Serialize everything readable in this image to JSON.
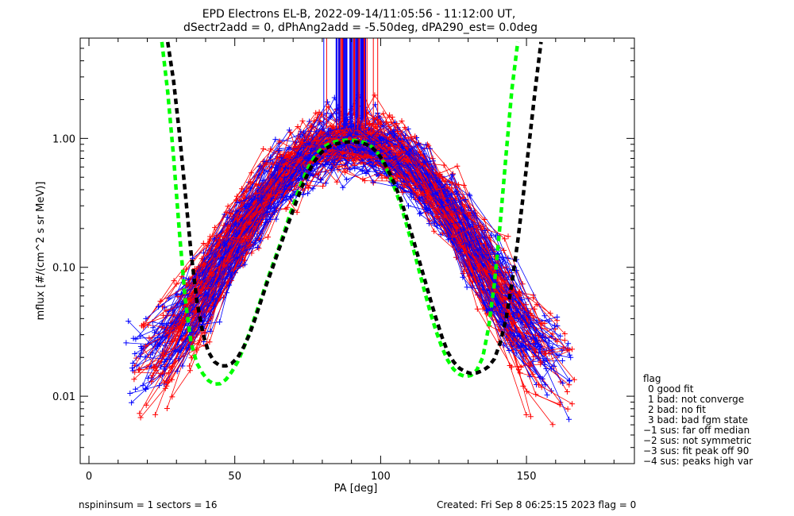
{
  "chart_data": {
    "type": "line",
    "title_line1": "EPD Electrons EL-B, 2022-09-14/11:05:56 - 11:12:00 UT,",
    "title_line2": "dSectr2add = 0, dPhAng2add = -5.50deg, dPA290_est=   0.0deg",
    "xlabel": "PA [deg]",
    "ylabel": "mflux [#/(cm^2 s sr MeV)]",
    "xlim": [
      -3,
      187
    ],
    "ylim": [
      0.003,
      6.0
    ],
    "yscale": "log",
    "x_ticks": [
      {
        "v": 0,
        "label": "0"
      },
      {
        "v": 50,
        "label": "50"
      },
      {
        "v": 100,
        "label": "100"
      },
      {
        "v": 150,
        "label": "150"
      }
    ],
    "y_ticks": [
      {
        "v": 0.01,
        "label": "0.01"
      },
      {
        "v": 0.1,
        "label": "0.10"
      },
      {
        "v": 1.0,
        "label": "1.00"
      }
    ],
    "colors": {
      "red": "#ff0000",
      "blue": "#0000ff",
      "green": "#00ff00",
      "black": "#000000"
    },
    "series": [
      {
        "color": "green",
        "style": "dashed",
        "x": [
          25,
          27,
          29,
          31,
          33,
          35,
          37,
          39,
          41,
          43,
          45,
          47,
          49,
          51,
          53,
          55,
          57,
          59,
          61,
          63,
          65,
          67,
          69,
          71,
          73,
          75,
          77,
          79,
          81,
          83,
          85,
          87,
          89,
          91,
          93,
          95,
          97,
          99,
          101,
          103,
          105,
          107,
          109,
          111,
          113,
          115,
          117,
          119,
          121,
          123,
          125,
          127,
          129,
          131,
          133,
          135,
          137,
          139,
          141,
          143,
          145,
          147
        ],
        "y": [
          5.6,
          2.3,
          0.72,
          0.19,
          0.056,
          0.026,
          0.018,
          0.015,
          0.0132,
          0.0124,
          0.0125,
          0.0135,
          0.0155,
          0.0185,
          0.0235,
          0.031,
          0.042,
          0.057,
          0.078,
          0.105,
          0.14,
          0.19,
          0.26,
          0.35,
          0.46,
          0.58,
          0.7,
          0.8,
          0.87,
          0.92,
          0.95,
          0.965,
          0.97,
          0.965,
          0.95,
          0.92,
          0.86,
          0.77,
          0.65,
          0.52,
          0.4,
          0.3,
          0.21,
          0.145,
          0.098,
          0.066,
          0.045,
          0.032,
          0.024,
          0.019,
          0.0162,
          0.0148,
          0.0142,
          0.0145,
          0.016,
          0.02,
          0.034,
          0.075,
          0.22,
          0.75,
          2.4,
          5.6
        ]
      },
      {
        "color": "black",
        "style": "dashed",
        "x": [
          27,
          29,
          31,
          33,
          35,
          37,
          39,
          41,
          43,
          45,
          47,
          49,
          51,
          53,
          55,
          57,
          59,
          61,
          63,
          65,
          67,
          69,
          71,
          73,
          75,
          77,
          79,
          81,
          83,
          85,
          87,
          89,
          91,
          93,
          95,
          97,
          99,
          101,
          103,
          105,
          107,
          109,
          111,
          113,
          115,
          117,
          119,
          121,
          123,
          125,
          127,
          129,
          131,
          133,
          135,
          137,
          139,
          141,
          143,
          145,
          147,
          149,
          151,
          153,
          155
        ],
        "y": [
          5.6,
          2.8,
          1.1,
          0.38,
          0.13,
          0.055,
          0.031,
          0.022,
          0.0185,
          0.0172,
          0.0172,
          0.018,
          0.02,
          0.024,
          0.03,
          0.04,
          0.055,
          0.075,
          0.1,
          0.135,
          0.18,
          0.24,
          0.32,
          0.42,
          0.53,
          0.65,
          0.75,
          0.83,
          0.88,
          0.91,
          0.93,
          0.94,
          0.94,
          0.93,
          0.9,
          0.85,
          0.77,
          0.66,
          0.54,
          0.43,
          0.33,
          0.24,
          0.17,
          0.118,
          0.082,
          0.057,
          0.04,
          0.029,
          0.022,
          0.0185,
          0.0165,
          0.0155,
          0.015,
          0.0152,
          0.0158,
          0.017,
          0.0195,
          0.026,
          0.04,
          0.075,
          0.16,
          0.38,
          0.95,
          2.4,
          5.6
        ]
      }
    ]
  },
  "legend": {
    "title": "flag",
    "items": [
      "0 good fit",
      "1 bad: not converge",
      "2 bad: no fit",
      "3 bad: bad fgm state",
      "−1 sus: far off median",
      "−2 sus: not symmetric",
      "−3 sus: fit peak off 90",
      "−4 sus: peaks high var"
    ]
  },
  "footer": {
    "left": "nspininsum =  1  sectors = 16",
    "right": "Created: Fri Sep  8 06:25:15 2023   flag = 0"
  }
}
